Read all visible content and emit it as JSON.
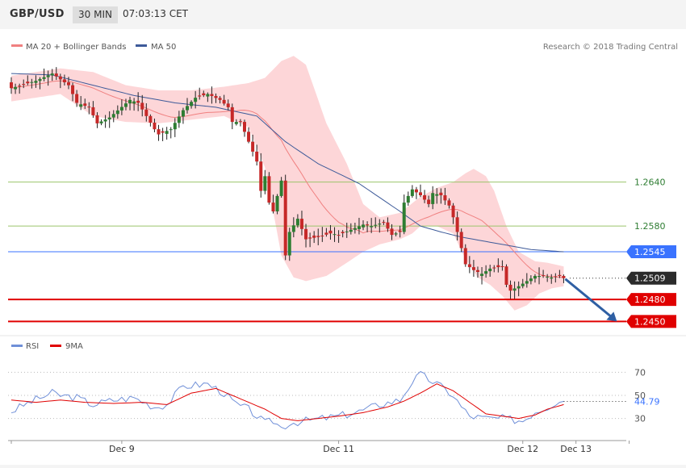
{
  "header": {
    "symbol": "GBP/USD",
    "timeframe": "30 MIN",
    "time": "07:03:13 CET"
  },
  "colors": {
    "up_candle": "#2e7d32",
    "down_candle": "#c62828",
    "bollinger_fill": "#fdd6d8",
    "ma20": "#f08080",
    "ma50": "#3d5a99",
    "resistance_line": "#9cc46b",
    "pivot_line": "#3a73ff",
    "support_line": "#e00000",
    "rsi_line": "#6f8fd8",
    "rsi_ma": "#e00000"
  },
  "chart_data": [
    {
      "type": "line",
      "title": "GBP/USD",
      "legend": [
        "MA 20 + Bollinger Bands",
        "MA 50"
      ],
      "legend_position": "top-left",
      "credit": "Research © 2018 Trading Central",
      "x_ticks": [
        "Dec 9",
        "Dec 11",
        "Dec 12",
        "Dec 13"
      ],
      "ylim": [
        1.2435,
        1.282
      ],
      "levels": [
        {
          "label": "1.2640",
          "value": 1.264,
          "kind": "resistance"
        },
        {
          "label": "1.2580",
          "value": 1.258,
          "kind": "resistance"
        },
        {
          "label": "1.2545",
          "value": 1.2545,
          "kind": "pivot"
        },
        {
          "label": "1.2509",
          "value": 1.2509,
          "kind": "last"
        },
        {
          "label": "1.2480",
          "value": 1.248,
          "kind": "support"
        },
        {
          "label": "1.2450",
          "value": 1.245,
          "kind": "support"
        }
      ],
      "anchors_close": [
        [
          0,
          1.2768
        ],
        [
          6,
          1.2778
        ],
        [
          10,
          1.2788
        ],
        [
          14,
          1.2772
        ],
        [
          16,
          1.2748
        ],
        [
          19,
          1.2742
        ],
        [
          21,
          1.272
        ],
        [
          24,
          1.2728
        ],
        [
          29,
          1.2752
        ],
        [
          31,
          1.2748
        ],
        [
          33,
          1.273
        ],
        [
          35,
          1.2712
        ],
        [
          36,
          1.2705
        ],
        [
          39,
          1.2712
        ],
        [
          42,
          1.2738
        ],
        [
          45,
          1.2755
        ],
        [
          48,
          1.276
        ],
        [
          51,
          1.2752
        ],
        [
          53,
          1.2742
        ],
        [
          54,
          1.2722
        ],
        [
          56,
          1.2722
        ],
        [
          58,
          1.2695
        ],
        [
          60,
          1.2668
        ],
        [
          61,
          1.2628
        ],
        [
          62,
          1.2648
        ],
        [
          63,
          1.2612
        ],
        [
          64,
          1.26
        ],
        [
          66,
          1.2642
        ],
        [
          67,
          1.254
        ],
        [
          68,
          1.2572
        ],
        [
          70,
          1.259
        ],
        [
          72,
          1.2562
        ],
        [
          75,
          1.2565
        ],
        [
          78,
          1.257
        ],
        [
          80,
          1.2568
        ],
        [
          83,
          1.2575
        ],
        [
          86,
          1.2582
        ],
        [
          88,
          1.258
        ],
        [
          91,
          1.2585
        ],
        [
          93,
          1.2568
        ],
        [
          95,
          1.2572
        ],
        [
          96,
          1.2612
        ],
        [
          98,
          1.263
        ],
        [
          100,
          1.2622
        ],
        [
          102,
          1.261
        ],
        [
          103,
          1.2625
        ],
        [
          105,
          1.2622
        ],
        [
          107,
          1.2608
        ],
        [
          108,
          1.2592
        ],
        [
          109,
          1.2572
        ],
        [
          111,
          1.2528
        ],
        [
          113,
          1.252
        ],
        [
          115,
          1.2515
        ],
        [
          117,
          1.2522
        ],
        [
          120,
          1.2525
        ],
        [
          121,
          1.25
        ],
        [
          122,
          1.2492
        ],
        [
          124,
          1.2498
        ],
        [
          126,
          1.2505
        ],
        [
          128,
          1.2512
        ],
        [
          130,
          1.2512
        ],
        [
          132,
          1.251
        ],
        [
          134,
          1.2512
        ],
        [
          135,
          1.2509
        ]
      ],
      "ma50_anchors": [
        [
          0,
          1.2788
        ],
        [
          10,
          1.2786
        ],
        [
          20,
          1.2772
        ],
        [
          30,
          1.2758
        ],
        [
          40,
          1.2748
        ],
        [
          50,
          1.2742
        ],
        [
          60,
          1.273
        ],
        [
          67,
          1.2695
        ],
        [
          75,
          1.2665
        ],
        [
          85,
          1.2638
        ],
        [
          95,
          1.26
        ],
        [
          100,
          1.258
        ],
        [
          105,
          1.2572
        ],
        [
          110,
          1.2565
        ],
        [
          115,
          1.256
        ],
        [
          120,
          1.2555
        ],
        [
          127,
          1.2548
        ],
        [
          135,
          1.2545
        ]
      ],
      "band_top_anchors": [
        [
          0,
          1.2785
        ],
        [
          12,
          1.2795
        ],
        [
          20,
          1.279
        ],
        [
          28,
          1.2772
        ],
        [
          36,
          1.2765
        ],
        [
          44,
          1.2765
        ],
        [
          52,
          1.277
        ],
        [
          58,
          1.2775
        ],
        [
          62,
          1.2782
        ],
        [
          66,
          1.2805
        ],
        [
          69,
          1.2812
        ],
        [
          72,
          1.28
        ],
        [
          77,
          1.272
        ],
        [
          82,
          1.2665
        ],
        [
          86,
          1.261
        ],
        [
          90,
          1.2592
        ],
        [
          95,
          1.2598
        ],
        [
          100,
          1.262
        ],
        [
          104,
          1.2632
        ],
        [
          108,
          1.264
        ],
        [
          111,
          1.2652
        ],
        [
          113,
          1.2658
        ],
        [
          116,
          1.2648
        ],
        [
          118,
          1.2628
        ],
        [
          121,
          1.258
        ],
        [
          124,
          1.2545
        ],
        [
          128,
          1.2532
        ],
        [
          131,
          1.253
        ],
        [
          135,
          1.2525
        ]
      ],
      "band_bottom_anchors": [
        [
          0,
          1.275
        ],
        [
          12,
          1.276
        ],
        [
          20,
          1.273
        ],
        [
          28,
          1.2722
        ],
        [
          36,
          1.272
        ],
        [
          44,
          1.2725
        ],
        [
          52,
          1.273
        ],
        [
          58,
          1.2715
        ],
        [
          62,
          1.266
        ],
        [
          66,
          1.254
        ],
        [
          69,
          1.251
        ],
        [
          72,
          1.2505
        ],
        [
          77,
          1.2512
        ],
        [
          82,
          1.253
        ],
        [
          86,
          1.2545
        ],
        [
          90,
          1.2555
        ],
        [
          95,
          1.2562
        ],
        [
          98,
          1.257
        ],
        [
          100,
          1.258
        ],
        [
          104,
          1.258
        ],
        [
          108,
          1.257
        ],
        [
          111,
          1.2535
        ],
        [
          114,
          1.251
        ],
        [
          117,
          1.25
        ],
        [
          120,
          1.2485
        ],
        [
          123,
          1.2465
        ],
        [
          126,
          1.2472
        ],
        [
          129,
          1.2488
        ],
        [
          132,
          1.2495
        ],
        [
          135,
          1.2498
        ]
      ],
      "forecast": {
        "from": [
          135,
          1.2509
        ],
        "to": [
          148,
          1.245
        ]
      }
    },
    {
      "type": "line",
      "title": "RSI",
      "legend": [
        "RSI",
        "9MA"
      ],
      "legend_position": "top-left",
      "ylim": [
        15,
        85
      ],
      "y_ticks": [
        "70",
        "50",
        "30"
      ],
      "last_value_label": "44.79",
      "rsi_anchors": [
        [
          0,
          36
        ],
        [
          5,
          45
        ],
        [
          10,
          52
        ],
        [
          12,
          50
        ],
        [
          16,
          48
        ],
        [
          20,
          42
        ],
        [
          25,
          46
        ],
        [
          30,
          48
        ],
        [
          35,
          40
        ],
        [
          38,
          42
        ],
        [
          42,
          58
        ],
        [
          48,
          60
        ],
        [
          52,
          52
        ],
        [
          55,
          42
        ],
        [
          58,
          38
        ],
        [
          60,
          32
        ],
        [
          62,
          26
        ],
        [
          64,
          28
        ],
        [
          66,
          22
        ],
        [
          68,
          26
        ],
        [
          72,
          28
        ],
        [
          76,
          30
        ],
        [
          80,
          32
        ],
        [
          85,
          36
        ],
        [
          90,
          42
        ],
        [
          95,
          46
        ],
        [
          98,
          62
        ],
        [
          100,
          68
        ],
        [
          104,
          60
        ],
        [
          108,
          50
        ],
        [
          110,
          40
        ],
        [
          112,
          32
        ],
        [
          116,
          30
        ],
        [
          120,
          30
        ],
        [
          125,
          28
        ],
        [
          128,
          36
        ],
        [
          131,
          40
        ],
        [
          134,
          46
        ],
        [
          135,
          44.79
        ]
      ],
      "ma_anchors": [
        [
          0,
          46
        ],
        [
          6,
          44
        ],
        [
          12,
          46
        ],
        [
          18,
          44
        ],
        [
          25,
          43
        ],
        [
          32,
          44
        ],
        [
          38,
          42
        ],
        [
          44,
          52
        ],
        [
          50,
          56
        ],
        [
          54,
          50
        ],
        [
          58,
          44
        ],
        [
          62,
          38
        ],
        [
          66,
          30
        ],
        [
          70,
          28
        ],
        [
          75,
          30
        ],
        [
          80,
          32
        ],
        [
          86,
          35
        ],
        [
          92,
          40
        ],
        [
          96,
          45
        ],
        [
          100,
          52
        ],
        [
          104,
          60
        ],
        [
          108,
          54
        ],
        [
          112,
          44
        ],
        [
          116,
          34
        ],
        [
          120,
          32
        ],
        [
          124,
          30
        ],
        [
          128,
          33
        ],
        [
          131,
          38
        ],
        [
          135,
          42
        ]
      ]
    }
  ]
}
